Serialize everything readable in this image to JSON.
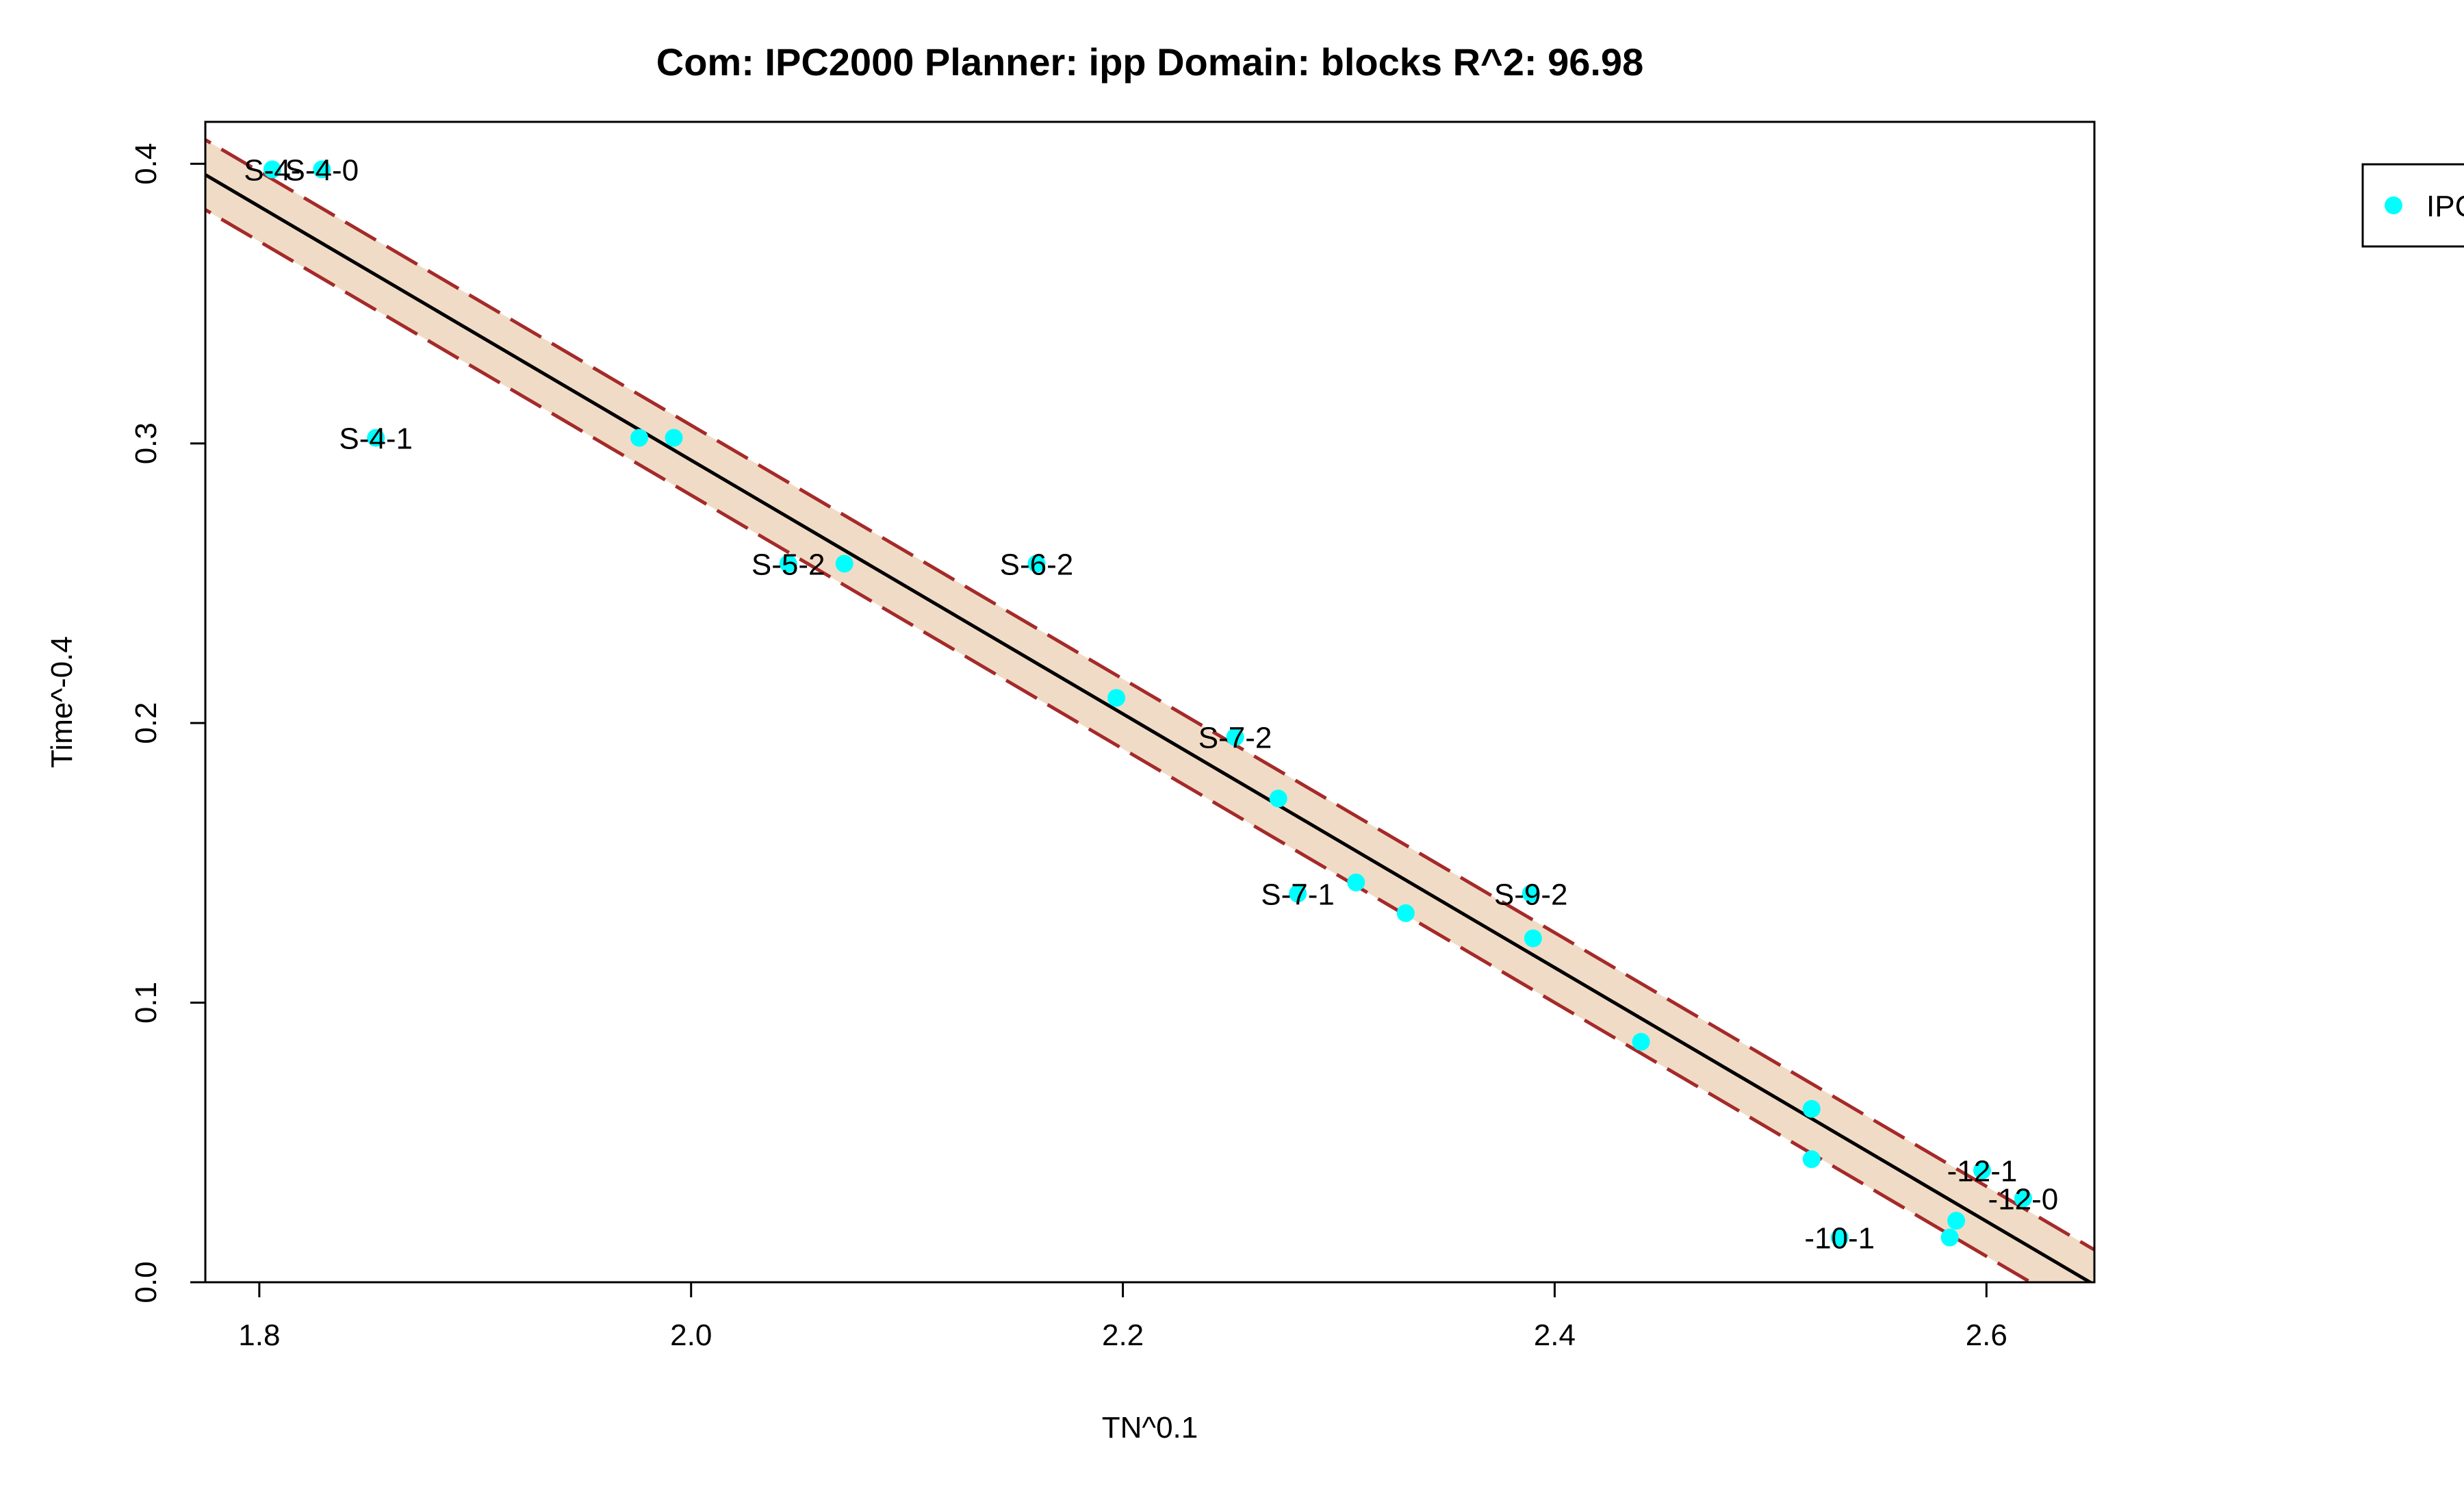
{
  "chart_data": {
    "type": "scatter",
    "title": "Com: IPC2000 Planner: ipp Domain: blocks R^2: 96.98",
    "xlabel": "TN^0.1",
    "ylabel": "Time^-0.4",
    "xlim": [
      1.775,
      2.65
    ],
    "ylim": [
      0.0,
      0.415
    ],
    "x_ticks": [
      1.8,
      2.0,
      2.2,
      2.4,
      2.6
    ],
    "x_tick_labels": [
      "1.8",
      "2.0",
      "2.2",
      "2.4",
      "2.6"
    ],
    "y_ticks": [
      0.0,
      0.1,
      0.2,
      0.3,
      0.4
    ],
    "y_tick_labels": [
      "0.0",
      "0.1",
      "0.2",
      "0.3",
      "0.4"
    ],
    "grid": false,
    "legend": {
      "placement": "top-right",
      "entries": [
        "IPC"
      ]
    },
    "colors": {
      "points": "#00ffff",
      "fit_line": "#000000",
      "band_fill": "#f0dcc6",
      "band_edge": "#a52a2a"
    },
    "fit": {
      "slope": -0.4537,
      "intercept": 1.2014,
      "band_halfwidth": 0.0125
    },
    "series": [
      {
        "name": "IPC",
        "points": [
          {
            "x": 1.806,
            "y": 0.398,
            "label": "S-4-"
          },
          {
            "x": 1.829,
            "y": 0.398,
            "label": "S-4-0"
          },
          {
            "x": 1.854,
            "y": 0.302,
            "label": "S-4-1"
          },
          {
            "x": 1.976,
            "y": 0.302,
            "label": ""
          },
          {
            "x": 1.992,
            "y": 0.302,
            "label": ""
          },
          {
            "x": 2.045,
            "y": 0.257,
            "label": "S-5-2"
          },
          {
            "x": 2.071,
            "y": 0.257,
            "label": ""
          },
          {
            "x": 2.16,
            "y": 0.257,
            "label": "S-6-2"
          },
          {
            "x": 2.197,
            "y": 0.209,
            "label": ""
          },
          {
            "x": 2.252,
            "y": 0.195,
            "label": "S-7-2"
          },
          {
            "x": 2.272,
            "y": 0.173,
            "label": ""
          },
          {
            "x": 2.281,
            "y": 0.139,
            "label": "S-7-1"
          },
          {
            "x": 2.308,
            "y": 0.143,
            "label": ""
          },
          {
            "x": 2.331,
            "y": 0.132,
            "label": ""
          },
          {
            "x": 2.389,
            "y": 0.139,
            "label": "S-9-2"
          },
          {
            "x": 2.39,
            "y": 0.123,
            "label": ""
          },
          {
            "x": 2.44,
            "y": 0.086,
            "label": ""
          },
          {
            "x": 2.519,
            "y": 0.062,
            "label": ""
          },
          {
            "x": 2.519,
            "y": 0.044,
            "label": ""
          },
          {
            "x": 2.532,
            "y": 0.016,
            "label": "-10-1"
          },
          {
            "x": 2.583,
            "y": 0.016,
            "label": ""
          },
          {
            "x": 2.586,
            "y": 0.022,
            "label": ""
          },
          {
            "x": 2.598,
            "y": 0.04,
            "label": "-12-1"
          },
          {
            "x": 2.617,
            "y": 0.03,
            "label": "-12-0"
          }
        ]
      }
    ]
  }
}
